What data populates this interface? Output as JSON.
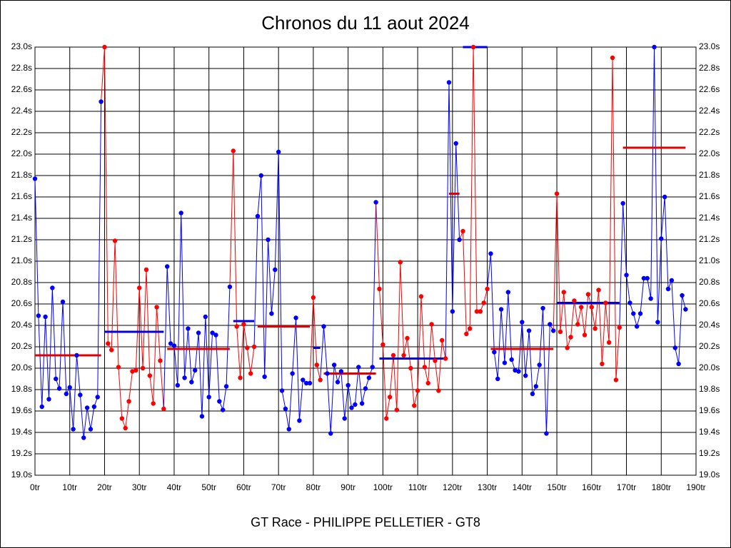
{
  "chart_data": {
    "type": "line",
    "title": "Chronos du 11 aout 2024",
    "subtitle": "GT Race - PHILIPPE PELLETIER - GT8",
    "xlim": [
      0,
      190
    ],
    "xticks": [
      {
        "value": 0,
        "label": "0tr"
      },
      {
        "value": 10,
        "label": "10tr"
      },
      {
        "value": 20,
        "label": "20tr"
      },
      {
        "value": 30,
        "label": "30tr"
      },
      {
        "value": 40,
        "label": "40tr"
      },
      {
        "value": 50,
        "label": "50tr"
      },
      {
        "value": 60,
        "label": "60tr"
      },
      {
        "value": 70,
        "label": "70tr"
      },
      {
        "value": 80,
        "label": "80tr"
      },
      {
        "value": 90,
        "label": "90tr"
      },
      {
        "value": 100,
        "label": "100tr"
      },
      {
        "value": 110,
        "label": "110tr"
      },
      {
        "value": 120,
        "label": "120tr"
      },
      {
        "value": 130,
        "label": "130tr"
      },
      {
        "value": 140,
        "label": "140tr"
      },
      {
        "value": 150,
        "label": "150tr"
      },
      {
        "value": 160,
        "label": "160tr"
      },
      {
        "value": 170,
        "label": "170tr"
      },
      {
        "value": 180,
        "label": "180tr"
      },
      {
        "value": 190,
        "label": "190tr"
      }
    ],
    "ylim": [
      19.0,
      23.0
    ],
    "yticks": [
      {
        "value": 19.0,
        "label": "19.0s"
      },
      {
        "value": 19.2,
        "label": "19.2s"
      },
      {
        "value": 19.4,
        "label": "19.4s"
      },
      {
        "value": 19.6,
        "label": "19.6s"
      },
      {
        "value": 19.8,
        "label": "19.8s"
      },
      {
        "value": 20.0,
        "label": "20.0s"
      },
      {
        "value": 20.2,
        "label": "20.2s"
      },
      {
        "value": 20.4,
        "label": "20.4s"
      },
      {
        "value": 20.6,
        "label": "20.6s"
      },
      {
        "value": 20.8,
        "label": "20.8s"
      },
      {
        "value": 21.0,
        "label": "21.0s"
      },
      {
        "value": 21.2,
        "label": "21.2s"
      },
      {
        "value": 21.4,
        "label": "21.4s"
      },
      {
        "value": 21.6,
        "label": "21.6s"
      },
      {
        "value": 21.8,
        "label": "21.8s"
      },
      {
        "value": 22.0,
        "label": "22.0s"
      },
      {
        "value": 22.2,
        "label": "22.2s"
      },
      {
        "value": 22.4,
        "label": "22.4s"
      },
      {
        "value": 22.6,
        "label": "22.6s"
      },
      {
        "value": 22.8,
        "label": "22.8s"
      },
      {
        "value": 23.0,
        "label": "23.0s"
      }
    ],
    "grid": true,
    "series": [
      {
        "color": "#0000ff",
        "mean": 20.12,
        "mean_color": "#e00000",
        "x": [
          0,
          1,
          2,
          3,
          4,
          5,
          6,
          7,
          8,
          9,
          10,
          11,
          12,
          13,
          14,
          15,
          16,
          17,
          18,
          19
        ],
        "values": [
          21.77,
          20.49,
          19.64,
          20.48,
          19.71,
          20.75,
          19.9,
          19.81,
          20.62,
          19.76,
          19.82,
          19.43,
          20.12,
          19.75,
          19.35,
          19.63,
          19.43,
          19.64,
          19.73,
          22.49
        ]
      },
      {
        "color": "#ff0000",
        "mean": 20.34,
        "mean_color": "#0000e0",
        "x": [
          20,
          21,
          22,
          23,
          24,
          25,
          26,
          27,
          28,
          29,
          30,
          31,
          32,
          33,
          34,
          35,
          36,
          37
        ],
        "values": [
          23.0,
          20.23,
          20.17,
          21.19,
          20.01,
          19.53,
          19.44,
          19.69,
          19.97,
          19.98,
          20.75,
          20.0,
          20.92,
          19.93,
          19.67,
          20.57,
          20.07,
          19.62
        ]
      },
      {
        "color": "#0000ff",
        "mean": 20.18,
        "mean_color": "#e00000",
        "x": [
          38,
          39,
          40,
          41,
          42,
          43,
          44,
          45,
          46,
          47,
          48,
          49,
          50,
          51,
          52,
          53,
          54,
          55,
          56
        ],
        "values": [
          20.95,
          20.23,
          20.21,
          19.84,
          21.45,
          19.91,
          20.37,
          19.87,
          19.98,
          20.33,
          19.55,
          20.48,
          19.73,
          20.33,
          20.31,
          19.69,
          19.61,
          19.83,
          20.76
        ]
      },
      {
        "color": "#ff0000",
        "mean": 20.44,
        "mean_color": "#0000e0",
        "x": [
          57,
          58,
          59,
          60,
          61,
          62,
          63
        ],
        "values": [
          22.03,
          20.39,
          19.91,
          20.41,
          20.19,
          19.95,
          20.2
        ]
      },
      {
        "color": "#0000ff",
        "mean": 20.39,
        "mean_color": "#e00000",
        "x": [
          64,
          65,
          66,
          67,
          68,
          69,
          70,
          71,
          72,
          73,
          74,
          75,
          76,
          77,
          78,
          79
        ],
        "values": [
          21.42,
          21.8,
          19.92,
          21.2,
          20.51,
          20.92,
          22.02,
          19.79,
          19.62,
          19.43,
          19.95,
          20.47,
          19.51,
          19.89,
          19.86,
          19.86
        ]
      },
      {
        "color": "#ff0000",
        "mean": 20.19,
        "mean_color": "#0000e0",
        "x": [
          80,
          81,
          82
        ],
        "values": [
          20.66,
          20.03,
          19.89
        ]
      },
      {
        "color": "#0000ff",
        "mean": 19.95,
        "mean_color": "#e00000",
        "x": [
          83,
          84,
          85,
          86,
          87,
          88,
          89,
          90,
          91,
          92,
          93,
          94,
          95,
          96,
          97,
          98
        ],
        "values": [
          20.39,
          19.95,
          19.39,
          20.03,
          19.87,
          19.97,
          19.53,
          19.84,
          19.63,
          19.66,
          20.01,
          19.67,
          19.81,
          19.91,
          20.01,
          21.55
        ]
      },
      {
        "color": "#ff0000",
        "mean": 20.09,
        "mean_color": "#0000e0",
        "x": [
          99,
          100,
          101,
          102,
          103,
          104,
          105,
          106,
          107,
          108,
          109,
          110,
          111,
          112,
          113,
          114,
          115,
          116,
          117,
          118
        ],
        "values": [
          20.74,
          20.22,
          19.53,
          19.73,
          20.12,
          19.61,
          20.99,
          20.12,
          20.28,
          20.0,
          19.65,
          19.79,
          20.67,
          20.01,
          19.86,
          20.41,
          20.07,
          19.79,
          20.26,
          20.09
        ]
      },
      {
        "color": "#0000ff",
        "mean": 21.63,
        "mean_color": "#e00000",
        "x": [
          119,
          120,
          121,
          122
        ],
        "values": [
          22.67,
          20.53,
          22.1,
          21.2
        ]
      },
      {
        "color": "#ff0000",
        "mean": 23.0,
        "mean_color": "#0000e0",
        "x": [
          123,
          124,
          125,
          126,
          127,
          128,
          129,
          130
        ],
        "values": [
          21.28,
          20.32,
          20.37,
          23.0,
          20.53,
          20.53,
          20.61,
          20.74
        ]
      },
      {
        "color": "#0000ff",
        "mean": 20.18,
        "mean_color": "#e00000",
        "x": [
          131,
          132,
          133,
          134,
          135,
          136,
          137,
          138,
          139,
          140,
          141,
          142,
          143,
          144,
          145,
          146,
          147,
          148,
          149
        ],
        "values": [
          21.07,
          20.15,
          19.9,
          20.55,
          20.05,
          20.71,
          20.08,
          19.98,
          19.97,
          20.43,
          19.93,
          20.35,
          19.76,
          19.83,
          20.03,
          20.56,
          19.39,
          20.41,
          20.35
        ]
      },
      {
        "color": "#ff0000",
        "mean": 20.61,
        "mean_color": "#0000e0",
        "x": [
          150,
          151,
          152,
          153,
          154,
          155,
          156,
          157,
          158,
          159,
          160,
          161,
          162,
          163,
          164,
          165,
          166,
          167,
          168
        ],
        "values": [
          21.63,
          20.34,
          20.71,
          20.19,
          20.29,
          20.63,
          20.41,
          20.57,
          20.31,
          20.69,
          20.57,
          20.37,
          20.73,
          20.04,
          20.61,
          20.24,
          22.9,
          19.89,
          20.38
        ]
      },
      {
        "color": "#0000ff",
        "mean": 22.06,
        "mean_color": "#e00000",
        "x": [
          169,
          170,
          171,
          172,
          173,
          174,
          175,
          176,
          177,
          178,
          179,
          180,
          181,
          182,
          183,
          184,
          185,
          186,
          187
        ],
        "values": [
          21.54,
          20.87,
          20.61,
          20.51,
          20.39,
          20.51,
          20.84,
          20.84,
          20.65,
          23.0,
          20.43,
          21.21,
          21.6,
          20.74,
          20.82,
          20.19,
          20.04,
          20.68,
          20.55
        ]
      }
    ]
  }
}
